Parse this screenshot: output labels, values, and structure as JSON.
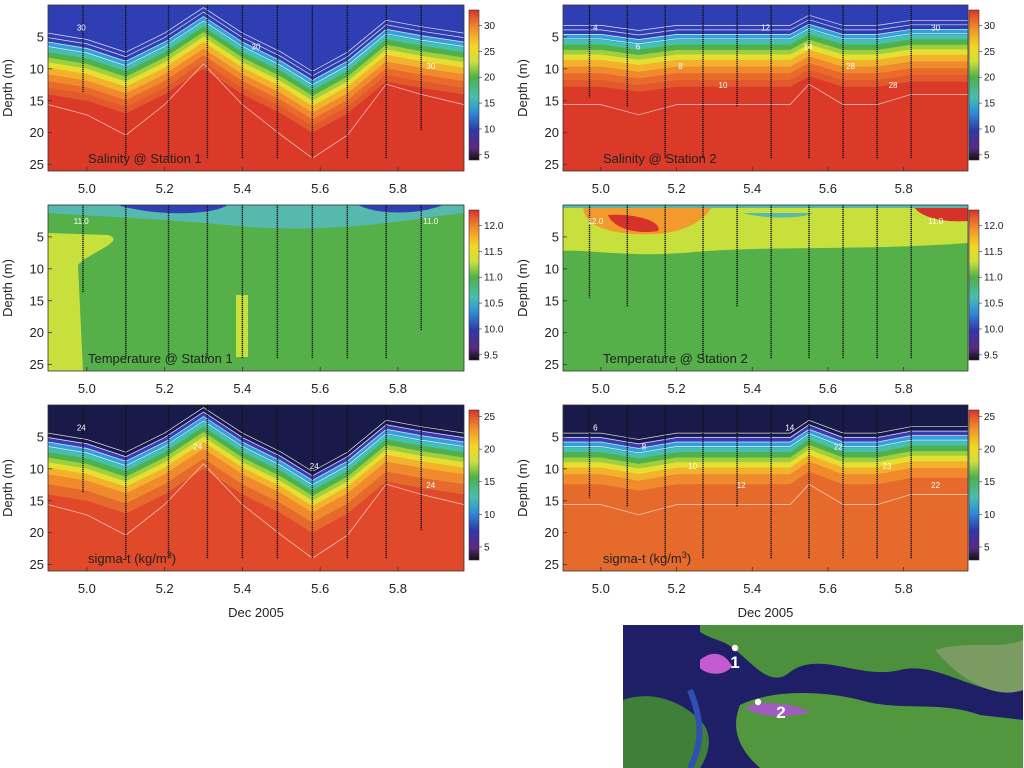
{
  "chart_data": [
    {
      "type": "heatmap",
      "panel": "salinity-station-1",
      "annotation": "Salinity @ Station 1",
      "ylabel": "Depth (m)",
      "xlabel": "",
      "x_ticks": [
        5.0,
        5.2,
        5.4,
        5.6,
        5.8
      ],
      "y_ticks": [
        5,
        10,
        15,
        20,
        25
      ],
      "xlim": [
        4.9,
        5.97
      ],
      "ylim": [
        26,
        0
      ],
      "y_inverted": true,
      "colorbar": {
        "ticks": [
          5,
          10,
          15,
          20,
          25,
          30
        ],
        "range": [
          4,
          33
        ]
      },
      "profile_x": [
        4.99,
        5.1,
        5.21,
        5.31,
        5.4,
        5.49,
        5.58,
        5.67,
        5.77,
        5.86
      ],
      "profile_max_depth": [
        13.7,
        24.1,
        24.1,
        24.1,
        24.1,
        24.1,
        24.1,
        24.1,
        24.1,
        19.6
      ],
      "surface_x": [
        4.9,
        5.0,
        5.1,
        5.2,
        5.3,
        5.4,
        5.5,
        5.58,
        5.67,
        5.77,
        5.86,
        5.97
      ],
      "halocline_depth": [
        6,
        7,
        9,
        6,
        2,
        6,
        9,
        12,
        9,
        4,
        5,
        6
      ],
      "contour_labels": [
        "30",
        "30",
        "30"
      ]
    },
    {
      "type": "heatmap",
      "panel": "salinity-station-2",
      "annotation": "Salinity @ Station 2",
      "ylabel": "Depth (m)",
      "xlabel": "",
      "x_ticks": [
        5.0,
        5.2,
        5.4,
        5.6,
        5.8
      ],
      "y_ticks": [
        5,
        10,
        15,
        20,
        25
      ],
      "xlim": [
        4.9,
        5.97
      ],
      "ylim": [
        26,
        0
      ],
      "y_inverted": true,
      "colorbar": {
        "ticks": [
          5,
          10,
          15,
          20,
          25,
          30
        ],
        "range": [
          4,
          33
        ]
      },
      "profile_x": [
        4.97,
        5.07,
        5.17,
        5.27,
        5.36,
        5.45,
        5.55,
        5.64,
        5.73,
        5.82
      ],
      "profile_max_depth": [
        14.5,
        15.9,
        24.1,
        24.1,
        15.9,
        24.1,
        24.1,
        24.1,
        24.1,
        24.1
      ],
      "surface_x": [
        4.9,
        5.0,
        5.1,
        5.2,
        5.3,
        5.4,
        5.5,
        5.55,
        5.64,
        5.73,
        5.82,
        5.97
      ],
      "halocline_depth": [
        6,
        6,
        7,
        6,
        6,
        6,
        6,
        4,
        6,
        6,
        5,
        5
      ],
      "contour_labels": [
        "4",
        "6",
        "8",
        "10",
        "12",
        "14",
        "28",
        "28",
        "30"
      ]
    },
    {
      "type": "heatmap",
      "panel": "temperature-station-1",
      "annotation": "Temperature @ Station 1",
      "ylabel": "Depth (m)",
      "xlabel": "",
      "x_ticks": [
        5.0,
        5.2,
        5.4,
        5.6,
        5.8
      ],
      "y_ticks": [
        5,
        10,
        15,
        20,
        25
      ],
      "xlim": [
        4.9,
        5.97
      ],
      "ylim": [
        26,
        0
      ],
      "y_inverted": true,
      "colorbar": {
        "ticks": [
          9.5,
          10.0,
          10.5,
          11.0,
          11.5,
          12.0
        ],
        "range": [
          9.4,
          12.3
        ]
      },
      "profile_x": [
        4.99,
        5.1,
        5.21,
        5.31,
        5.4,
        5.49,
        5.58,
        5.67,
        5.77,
        5.86
      ],
      "profile_max_depth": [
        13.7,
        24.1,
        24.1,
        24.1,
        24.1,
        24.1,
        24.1,
        24.1,
        24.1,
        19.6
      ],
      "contour_labels": [
        "11.0",
        "11.0"
      ]
    },
    {
      "type": "heatmap",
      "panel": "temperature-station-2",
      "annotation": "Temperature @ Station 2",
      "ylabel": "Depth (m)",
      "xlabel": "",
      "x_ticks": [
        5.0,
        5.2,
        5.4,
        5.6,
        5.8
      ],
      "y_ticks": [
        5,
        10,
        15,
        20,
        25
      ],
      "xlim": [
        4.9,
        5.97
      ],
      "ylim": [
        26,
        0
      ],
      "y_inverted": true,
      "colorbar": {
        "ticks": [
          9.5,
          10.0,
          10.5,
          11.0,
          11.5,
          12.0
        ],
        "range": [
          9.4,
          12.3
        ]
      },
      "profile_x": [
        4.97,
        5.07,
        5.17,
        5.27,
        5.36,
        5.45,
        5.55,
        5.64,
        5.73,
        5.82
      ],
      "profile_max_depth": [
        14.5,
        15.9,
        24.1,
        24.1,
        15.9,
        24.1,
        24.1,
        24.1,
        24.1,
        24.1
      ],
      "contour_labels": [
        "12.0",
        "11.0"
      ]
    },
    {
      "type": "heatmap",
      "panel": "sigma-t-station-1",
      "annotation_prefix": "sigma-t (kg/m",
      "annotation_sup": "3",
      "annotation_suffix": ")",
      "ylabel": "Depth (m)",
      "xlabel": "Dec 2005",
      "x_ticks": [
        5.0,
        5.2,
        5.4,
        5.6,
        5.8
      ],
      "y_ticks": [
        5,
        10,
        15,
        20,
        25
      ],
      "xlim": [
        4.9,
        5.97
      ],
      "ylim": [
        26,
        0
      ],
      "y_inverted": true,
      "colorbar": {
        "ticks": [
          5,
          10,
          15,
          20,
          25
        ],
        "range": [
          3,
          26
        ]
      },
      "profile_x": [
        4.99,
        5.1,
        5.21,
        5.31,
        5.4,
        5.49,
        5.58,
        5.67,
        5.77,
        5.86
      ],
      "profile_max_depth": [
        13.7,
        24.1,
        24.1,
        24.1,
        24.1,
        24.1,
        24.1,
        24.1,
        24.1,
        19.6
      ],
      "surface_x": [
        4.9,
        5.0,
        5.1,
        5.2,
        5.3,
        5.4,
        5.5,
        5.58,
        5.67,
        5.77,
        5.86,
        5.97
      ],
      "halocline_depth": [
        6,
        7,
        9,
        6,
        2,
        6,
        9,
        12,
        9,
        4,
        5,
        6
      ],
      "contour_labels": [
        "24",
        "24",
        "24",
        "24"
      ]
    },
    {
      "type": "heatmap",
      "panel": "sigma-t-station-2",
      "annotation_prefix": "sigma-t (kg/m",
      "annotation_sup": "3",
      "annotation_suffix": ")",
      "ylabel": "Depth (m)",
      "xlabel": "Dec 2005",
      "x_ticks": [
        5.0,
        5.2,
        5.4,
        5.6,
        5.8
      ],
      "y_ticks": [
        5,
        10,
        15,
        20,
        25
      ],
      "xlim": [
        4.9,
        5.97
      ],
      "ylim": [
        26,
        0
      ],
      "y_inverted": true,
      "colorbar": {
        "ticks": [
          5,
          10,
          15,
          20,
          25
        ],
        "range": [
          3,
          26
        ]
      },
      "profile_x": [
        4.97,
        5.07,
        5.17,
        5.27,
        5.36,
        5.45,
        5.55,
        5.64,
        5.73,
        5.82
      ],
      "profile_max_depth": [
        14.5,
        15.9,
        24.1,
        24.1,
        15.9,
        24.1,
        24.1,
        24.1,
        24.1,
        24.1
      ],
      "surface_x": [
        4.9,
        5.0,
        5.1,
        5.2,
        5.3,
        5.4,
        5.5,
        5.55,
        5.64,
        5.73,
        5.82,
        5.97
      ],
      "halocline_depth": [
        6,
        6,
        7,
        6,
        6,
        6,
        6,
        4,
        6,
        6,
        5,
        5
      ],
      "contour_labels": [
        "6",
        "8",
        "10",
        "12",
        "14",
        "22",
        "23",
        "22"
      ]
    }
  ],
  "map": {
    "station_labels": [
      "1",
      "2"
    ]
  }
}
